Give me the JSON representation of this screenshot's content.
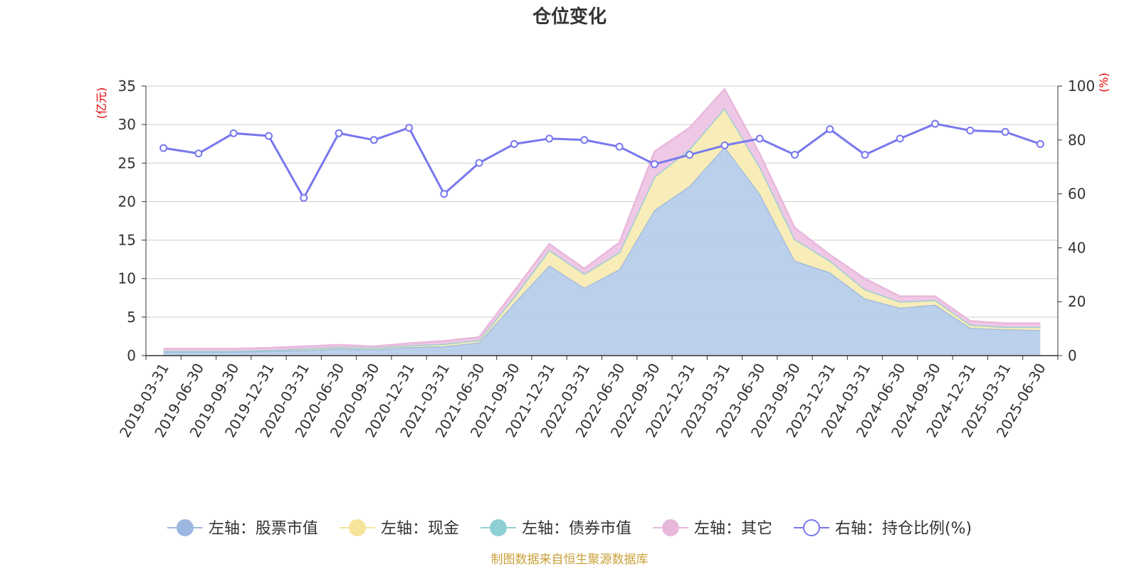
{
  "chart_data": {
    "type": "area",
    "title": "仓位变化",
    "source": "制图数据来自恒生聚源数据库",
    "left_unit": "(亿元)",
    "right_unit": "(%)",
    "left_ylim": [
      0,
      35
    ],
    "left_ticks": [
      0,
      5,
      10,
      15,
      20,
      25,
      30,
      35
    ],
    "right_ylim": [
      0,
      100
    ],
    "right_ticks": [
      0,
      20,
      40,
      60,
      80,
      100
    ],
    "grid": true,
    "legend_position": "bottom",
    "categories": [
      "2019-03-31",
      "2019-06-30",
      "2019-09-30",
      "2019-12-31",
      "2020-03-31",
      "2020-06-30",
      "2020-09-30",
      "2020-12-31",
      "2021-03-31",
      "2021-06-30",
      "2021-09-30",
      "2021-12-31",
      "2022-03-31",
      "2022-06-30",
      "2022-09-30",
      "2022-12-31",
      "2023-03-31",
      "2023-06-30",
      "2023-09-30",
      "2023-12-31",
      "2024-03-31",
      "2024-06-30",
      "2024-09-30",
      "2024-12-31",
      "2025-03-31",
      "2025-06-30"
    ],
    "stacked_series": [
      {
        "name": "左轴：股票市值",
        "color": "#9db8e0",
        "fill": "#b7cdea",
        "values": [
          0.5,
          0.5,
          0.5,
          0.6,
          0.7,
          0.9,
          0.8,
          1.1,
          1.2,
          1.7,
          6.8,
          11.7,
          8.8,
          11.2,
          18.9,
          22.0,
          27.1,
          21.0,
          12.3,
          10.8,
          7.4,
          6.2,
          6.6,
          3.6,
          3.4,
          3.3
        ]
      },
      {
        "name": "左轴：现金",
        "color": "#f5e49a",
        "fill": "#f8ebb4",
        "values": [
          0.1,
          0.1,
          0.1,
          0.1,
          0.2,
          0.2,
          0.2,
          0.2,
          0.3,
          0.3,
          0.8,
          2.0,
          1.8,
          2.2,
          4.3,
          4.8,
          5.0,
          3.5,
          2.8,
          1.5,
          1.2,
          0.8,
          0.6,
          0.4,
          0.3,
          0.4
        ]
      },
      {
        "name": "左轴：债券市值",
        "color": "#8fd0d4",
        "fill": "#a5dadd",
        "values": [
          0,
          0,
          0,
          0,
          0,
          0,
          0,
          0,
          0,
          0,
          0,
          0,
          0,
          0,
          0,
          0,
          0,
          0,
          0,
          0,
          0,
          0,
          0,
          0,
          0,
          0
        ]
      },
      {
        "name": "左轴：其它",
        "color": "#e8b8dc",
        "fill": "#eec5e4",
        "values": [
          0.3,
          0.3,
          0.3,
          0.3,
          0.3,
          0.3,
          0.2,
          0.3,
          0.4,
          0.4,
          0.8,
          0.8,
          0.7,
          1.3,
          3.3,
          2.8,
          2.5,
          1.7,
          1.5,
          0.8,
          1.4,
          0.7,
          0.5,
          0.5,
          0.5,
          0.5
        ]
      }
    ],
    "line_series": {
      "name": "右轴：持仓比例(%)",
      "color": "#7878ee",
      "values": [
        77,
        75,
        82.5,
        81.5,
        58.5,
        82.5,
        80,
        84.5,
        60,
        71.5,
        78.5,
        80.5,
        80,
        77.5,
        71,
        74.5,
        78,
        80.5,
        74.5,
        84,
        74.5,
        80.5,
        86,
        83.5,
        83,
        78.5
      ]
    }
  }
}
